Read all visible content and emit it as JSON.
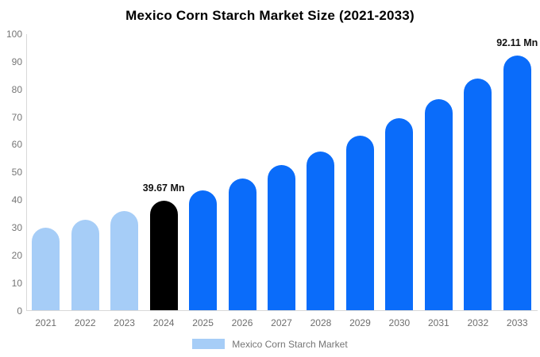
{
  "page": {
    "background": "#ffffff"
  },
  "chart_data": {
    "type": "bar",
    "title": "Mexico Corn Starch Market Size (2021-2033)",
    "categories": [
      "2021",
      "2022",
      "2023",
      "2024",
      "2025",
      "2026",
      "2027",
      "2028",
      "2029",
      "2030",
      "2031",
      "2032",
      "2033"
    ],
    "values": [
      29.96,
      32.9,
      36.13,
      39.67,
      43.56,
      47.83,
      52.52,
      57.67,
      63.33,
      69.54,
      76.36,
      83.85,
      92.11
    ],
    "unit": "Mn",
    "bar_colors": [
      "#a6cdf7",
      "#a6cdf7",
      "#a6cdf7",
      "#000000",
      "#0a6cfa",
      "#0a6cfa",
      "#0a6cfa",
      "#0a6cfa",
      "#0a6cfa",
      "#0a6cfa",
      "#0a6cfa",
      "#0a6cfa",
      "#0a6cfa"
    ],
    "ylim": [
      0,
      100
    ],
    "yticks": [
      0,
      10,
      20,
      30,
      40,
      50,
      60,
      70,
      80,
      90,
      100
    ],
    "grid": false,
    "data_labels": [
      {
        "category": "2024",
        "text": "39.67 Mn"
      },
      {
        "category": "2033",
        "text": "92.11 Mn"
      }
    ],
    "legend": {
      "position": "bottom",
      "label": "Mexico Corn Starch Market",
      "swatch_color": "#a6cdf7"
    },
    "colors": {
      "historical": "#a6cdf7",
      "base_year": "#000000",
      "forecast": "#0a6cfa",
      "axis_line": "#d9d9d9",
      "tick_label": "#757575",
      "title": "#000000"
    }
  }
}
